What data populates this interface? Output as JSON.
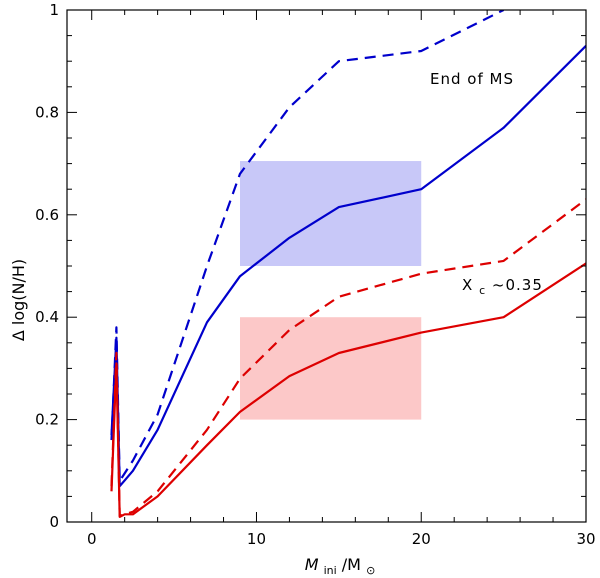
{
  "chart_data": {
    "type": "line",
    "xlabel_main": "M",
    "xlabel_sub": "ini",
    "xlabel_slash": "/M",
    "xlabel_sun": "⊙",
    "ylabel": "Δ log(N/H)",
    "xlim": [
      -1.5,
      30
    ],
    "ylim": [
      0,
      1
    ],
    "xticks": [
      0,
      10,
      20,
      30
    ],
    "xtick_labels": [
      "0",
      "10",
      "20",
      "30"
    ],
    "yticks": [
      0,
      0.2,
      0.4,
      0.6,
      0.8,
      1
    ],
    "ytick_labels": [
      "0",
      "0.2",
      "0.4",
      "0.6",
      "0.8",
      "1"
    ],
    "annotations": {
      "end_ms": "End of MS",
      "xc_main": "X",
      "xc_sub": "c",
      "xc_rest": "~0.35"
    },
    "colors": {
      "blue": "#0000cc",
      "red": "#dd0000",
      "blue_box": "#c8c8f8",
      "red_box": "#fcc8c8"
    },
    "regions": [
      {
        "name": "blue-observed-region",
        "color": "blue_box",
        "x": [
          9,
          20
        ],
        "y": [
          0.5,
          0.705
        ]
      },
      {
        "name": "red-observed-region",
        "color": "red_box",
        "x": [
          9,
          20
        ],
        "y": [
          0.2,
          0.4
        ]
      }
    ],
    "series": [
      {
        "name": "blue-solid-end-of-ms",
        "color": "blue",
        "dashed": false,
        "x": [
          1.2,
          1.5,
          1.7,
          2.5,
          4,
          7,
          9,
          12,
          15,
          20,
          25,
          30
        ],
        "y": [
          0.17,
          0.36,
          0.07,
          0.1,
          0.18,
          0.39,
          0.48,
          0.555,
          0.615,
          0.65,
          0.77,
          0.93
        ]
      },
      {
        "name": "blue-dashed-end-of-ms",
        "color": "blue",
        "dashed": true,
        "x": [
          1.2,
          1.5,
          1.7,
          2.5,
          4,
          7,
          9,
          12,
          15,
          20,
          25
        ],
        "y": [
          0.16,
          0.38,
          0.08,
          0.12,
          0.21,
          0.5,
          0.68,
          0.81,
          0.9,
          0.92,
          1.0
        ]
      },
      {
        "name": "red-solid-xc-035",
        "color": "red",
        "dashed": false,
        "x": [
          1.2,
          1.5,
          1.7,
          2,
          2.5,
          4,
          7,
          9,
          12,
          15,
          20,
          25,
          30
        ],
        "y": [
          0.06,
          0.31,
          0.01,
          0.015,
          0.015,
          0.05,
          0.15,
          0.215,
          0.285,
          0.33,
          0.37,
          0.4,
          0.505
        ]
      },
      {
        "name": "red-dashed-xc-035",
        "color": "red",
        "dashed": true,
        "x": [
          1.2,
          1.5,
          1.7,
          2,
          2.5,
          4,
          7,
          9,
          12,
          15,
          20,
          25,
          30
        ],
        "y": [
          0.07,
          0.33,
          0.012,
          0.015,
          0.02,
          0.06,
          0.18,
          0.28,
          0.375,
          0.44,
          0.485,
          0.51,
          0.63
        ]
      }
    ]
  }
}
